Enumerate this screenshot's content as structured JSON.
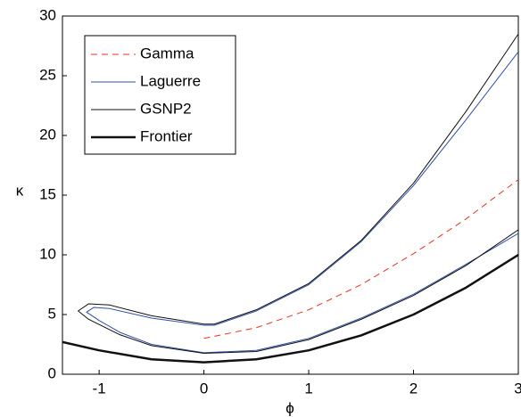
{
  "chart_data": {
    "type": "line",
    "xlabel": "ϕ",
    "ylabel": "κ",
    "xlim": [
      -1.35,
      3
    ],
    "ylim": [
      0,
      30
    ],
    "xticks": [
      -1,
      0,
      1,
      2,
      3
    ],
    "yticks": [
      0,
      5,
      10,
      15,
      20,
      25,
      30
    ],
    "legend": "upper left",
    "series": [
      {
        "name": "Gamma",
        "color": "#e8321e",
        "linestyle": "dashed",
        "linewidth": 1,
        "x": [
          0,
          0.5,
          1,
          1.5,
          2,
          2.5,
          3
        ],
        "values": [
          3,
          3.9,
          5.4,
          7.5,
          10.1,
          13,
          16.3
        ]
      },
      {
        "name": "Laguerre",
        "color": "#2f4fa8",
        "linestyle": "solid",
        "linewidth": 1,
        "x": [
          3,
          2.5,
          2,
          1.5,
          1,
          0.5,
          0.1,
          0,
          -0.5,
          -0.9,
          -1.05,
          -1.12,
          -1.0,
          -0.8,
          -0.5,
          0,
          0.5,
          1,
          1.5,
          2,
          2.5,
          3
        ],
        "values": [
          27,
          21.3,
          15.8,
          11.1,
          7.5,
          5.3,
          4.1,
          4.1,
          4.7,
          5.5,
          5.6,
          5.2,
          4.5,
          3.5,
          2.5,
          1.8,
          2.0,
          3.0,
          4.7,
          6.7,
          9.2,
          11.8
        ]
      },
      {
        "name": "GSNP2",
        "color": "#111111",
        "linestyle": "solid",
        "linewidth": 1,
        "x": [
          3,
          2.5,
          2,
          1.5,
          1,
          0.5,
          0.1,
          0,
          -0.5,
          -0.9,
          -1.1,
          -1.2,
          -1.1,
          -0.8,
          -0.5,
          0,
          0.5,
          1,
          1.5,
          2,
          2.5,
          3
        ],
        "values": [
          28.5,
          22,
          16,
          11.2,
          7.6,
          5.4,
          4.2,
          4.2,
          4.9,
          5.8,
          5.9,
          5.3,
          4.6,
          3.3,
          2.4,
          1.75,
          1.9,
          2.9,
          4.6,
          6.6,
          9.1,
          12.1
        ]
      },
      {
        "name": "Frontier",
        "color": "#111111",
        "linestyle": "solid",
        "linewidth": 2.5,
        "x": [
          -1.35,
          -1,
          -0.5,
          0,
          0.5,
          1,
          1.5,
          2,
          2.5,
          3
        ],
        "values": [
          2.7,
          2,
          1.25,
          1,
          1.25,
          2,
          3.25,
          5,
          7.25,
          10
        ]
      }
    ]
  }
}
